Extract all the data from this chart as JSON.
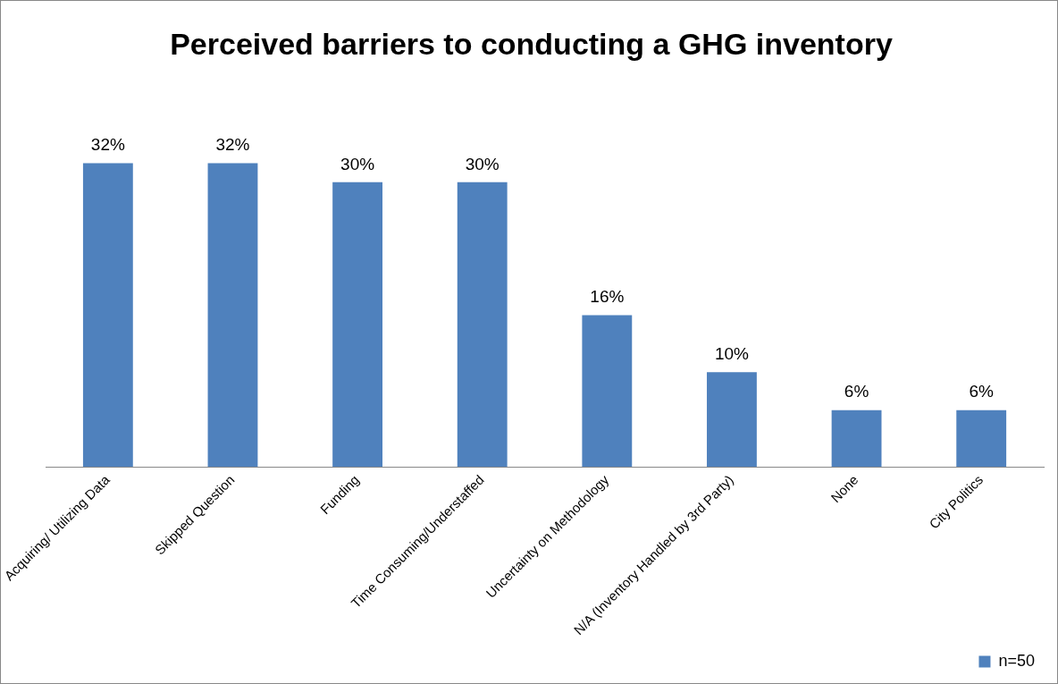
{
  "chart_data": {
    "type": "bar",
    "title": "Perceived barriers to conducting a GHG inventory",
    "categories": [
      "Acquiring/ Utilizing Data",
      "Skipped Question",
      "Funding",
      "Time Consuming/Understaffed",
      "Uncertainty on Methodology",
      "N/A (Inventory Handled by 3rd Party)",
      "None",
      "City Politics"
    ],
    "series": [
      {
        "name": "n=50",
        "color": "#4f81bd",
        "values": [
          32,
          32,
          30,
          30,
          16,
          10,
          6,
          6
        ],
        "value_labels": [
          "32%",
          "32%",
          "30%",
          "30%",
          "16%",
          "10%",
          "6%",
          "6%"
        ]
      }
    ],
    "legend": "bottom right",
    "grid": false
  }
}
